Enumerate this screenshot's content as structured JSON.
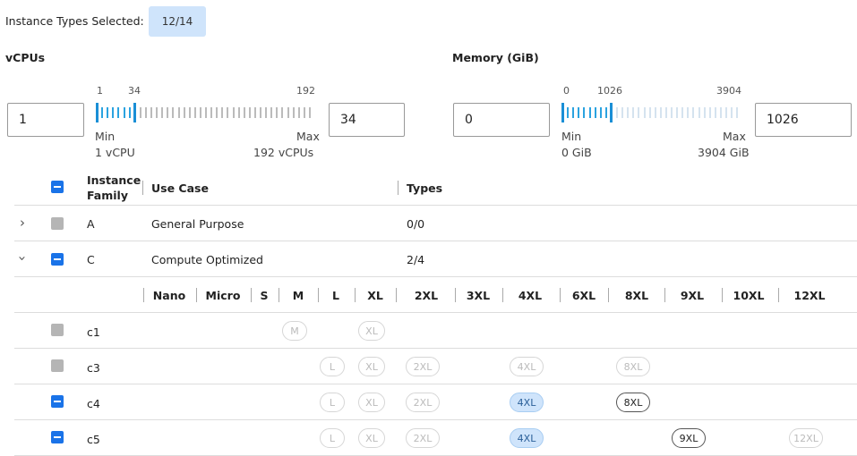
{
  "header": {
    "label": "Instance Types Selected:",
    "badge": "12/14"
  },
  "vcpu": {
    "title": "vCPUs",
    "min_input": "1",
    "max_input": "34",
    "scale_min": "1",
    "scale_selected": "34",
    "scale_max": "192",
    "min_label": "Min",
    "min_value": "1 vCPU",
    "max_label": "Max",
    "max_value": "192 vCPUs"
  },
  "memory": {
    "title": "Memory (GiB)",
    "min_input": "0",
    "max_input": "1026",
    "scale_min": "0",
    "scale_selected": "1026",
    "scale_max": "3904",
    "min_label": "Min",
    "min_value": "0 GiB",
    "max_label": "Max",
    "max_value": "3904 GiB"
  },
  "table": {
    "headers": [
      "Instance\nFamily",
      "Use Case",
      "Types"
    ],
    "families": [
      {
        "family": "A",
        "use_case": "General Purpose",
        "types": "0/0",
        "expanded": false,
        "check": "gray"
      },
      {
        "family": "C",
        "use_case": "Compute Optimized",
        "types": "2/4",
        "expanded": true,
        "check": "blue"
      }
    ],
    "sizes": [
      "Nano",
      "Micro",
      "S",
      "M",
      "L",
      "XL",
      "2XL",
      "3XL",
      "4XL",
      "6XL",
      "8XL",
      "9XL",
      "10XL",
      "12XL"
    ],
    "instances": [
      {
        "name": "c1",
        "check": "gray",
        "chips": [
          {
            "label": "M",
            "state": "disabled"
          },
          {
            "label": "XL",
            "state": "disabled"
          }
        ]
      },
      {
        "name": "c3",
        "check": "gray",
        "chips": [
          {
            "label": "L",
            "state": "disabled"
          },
          {
            "label": "XL",
            "state": "disabled"
          },
          {
            "label": "2XL",
            "state": "disabled"
          },
          {
            "label": "4XL",
            "state": "disabled"
          },
          {
            "label": "8XL",
            "state": "disabled"
          }
        ]
      },
      {
        "name": "c4",
        "check": "blue",
        "chips": [
          {
            "label": "L",
            "state": "disabled"
          },
          {
            "label": "XL",
            "state": "disabled"
          },
          {
            "label": "2XL",
            "state": "disabled"
          },
          {
            "label": "4XL",
            "state": "selected"
          },
          {
            "label": "8XL",
            "state": "available"
          }
        ]
      },
      {
        "name": "c5",
        "check": "blue",
        "chips": [
          {
            "label": "L",
            "state": "disabled"
          },
          {
            "label": "XL",
            "state": "disabled"
          },
          {
            "label": "2XL",
            "state": "disabled"
          },
          {
            "label": "4XL",
            "state": "selected"
          },
          {
            "label": "9XL",
            "state": "available"
          },
          {
            "label": "12XL",
            "state": "disabled"
          }
        ]
      }
    ]
  }
}
